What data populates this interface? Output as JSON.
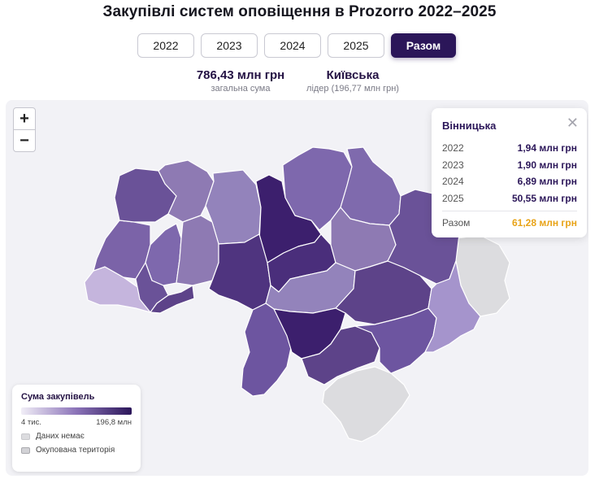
{
  "title": "Закупівлі систем оповіщення в Prozorro 2022–2025",
  "years": {
    "items": [
      "2022",
      "2023",
      "2024",
      "2025"
    ],
    "total_label": "Разом",
    "selected": "Разом"
  },
  "stats": {
    "total_value": "786,43 млн грн",
    "total_label": "загальна сума",
    "leader_value": "Київська",
    "leader_label": "лідер (196,77 млн грн)"
  },
  "zoom": {
    "in": "+",
    "out": "−"
  },
  "tooltip": {
    "region": "Вінницька",
    "close": "✕",
    "rows": [
      {
        "year": "2022",
        "value": "1,94 млн грн"
      },
      {
        "year": "2023",
        "value": "1,90 млн грн"
      },
      {
        "year": "2024",
        "value": "6,89 млн грн"
      },
      {
        "year": "2025",
        "value": "50,55 млн грн"
      }
    ],
    "total_label": "Разом",
    "total_value": "61,28 млн грн"
  },
  "legend": {
    "title": "Сума закупівель",
    "min": "4 тис.",
    "max": "196,8 млн",
    "no_data": "Даних немає",
    "occupied": "Окупована територія"
  },
  "colors": {
    "accent": "#2b1659",
    "total_highlight": "#e8a317",
    "no_data": "#dcdcdf",
    "map_light": "#c5b5dd",
    "map_mid": "#8b73b8",
    "map_dark": "#2b1659"
  }
}
